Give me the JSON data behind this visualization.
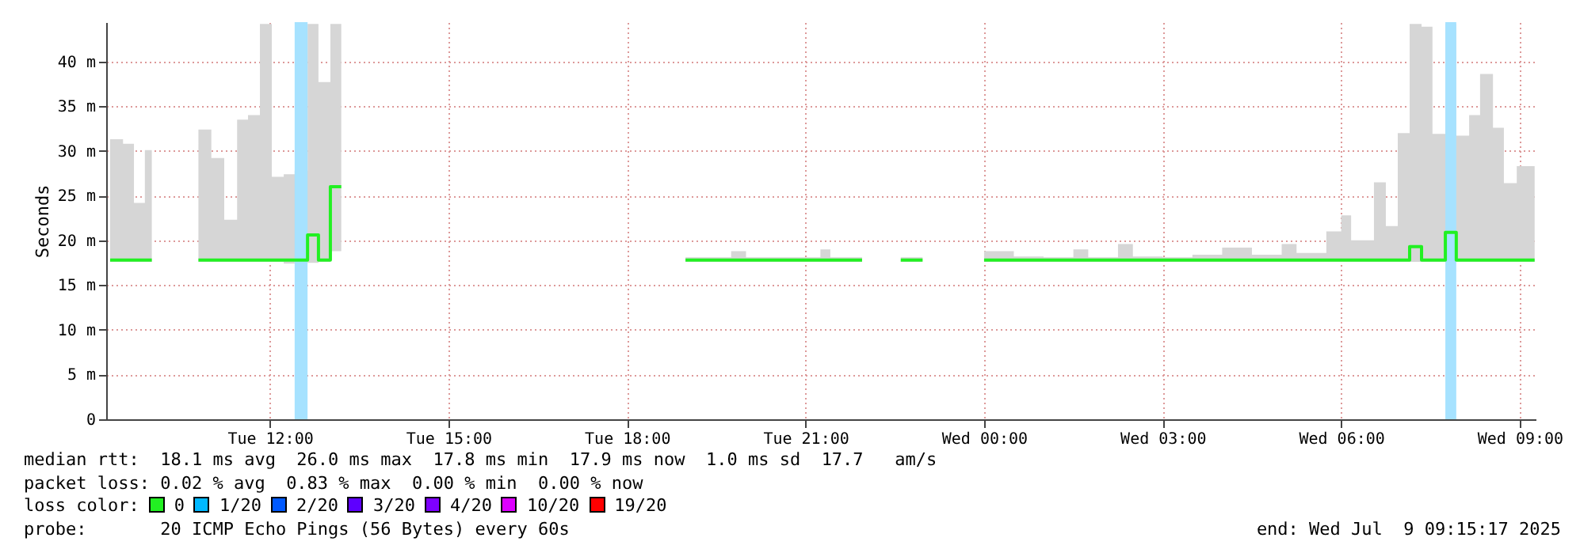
{
  "chart_data": {
    "type": "step",
    "ylabel": "Seconds",
    "x": [
      "2025-07-08T09:19",
      "2025-07-08T09:32",
      "2025-07-08T09:43",
      "2025-07-08T09:54",
      "2025-07-08T10:01",
      "2025-07-08T10:02",
      "2025-07-08T10:48",
      "2025-07-08T11:01",
      "2025-07-08T11:14",
      "2025-07-08T11:27",
      "2025-07-08T11:38",
      "2025-07-08T11:50",
      "2025-07-08T12:02",
      "2025-07-08T12:14",
      "2025-07-08T12:25",
      "2025-07-08T12:38",
      "2025-07-08T12:49",
      "2025-07-08T13:01",
      "2025-07-08T13:12",
      "2025-07-08T13:13",
      "2025-07-08T18:59",
      "2025-07-08T19:30",
      "2025-07-08T19:45",
      "2025-07-08T20:00",
      "2025-07-08T20:30",
      "2025-07-08T21:00",
      "2025-07-08T21:15",
      "2025-07-08T21:25",
      "2025-07-08T21:57",
      "2025-07-08T21:58",
      "2025-07-08T22:36",
      "2025-07-08T22:58",
      "2025-07-08T22:59",
      "2025-07-09T00:00",
      "2025-07-09T00:30",
      "2025-07-09T01:00",
      "2025-07-09T01:30",
      "2025-07-09T01:45",
      "2025-07-09T02:15",
      "2025-07-09T02:30",
      "2025-07-09T03:00",
      "2025-07-09T03:30",
      "2025-07-09T04:00",
      "2025-07-09T04:30",
      "2025-07-09T05:00",
      "2025-07-09T05:15",
      "2025-07-09T05:45",
      "2025-07-09T06:00",
      "2025-07-09T06:10",
      "2025-07-09T06:22",
      "2025-07-09T06:33",
      "2025-07-09T06:45",
      "2025-07-09T06:57",
      "2025-07-09T07:09",
      "2025-07-09T07:21",
      "2025-07-09T07:32",
      "2025-07-09T07:45",
      "2025-07-09T07:56",
      "2025-07-09T08:09",
      "2025-07-09T08:20",
      "2025-07-09T08:33",
      "2025-07-09T08:44",
      "2025-07-09T08:57",
      "2025-07-09T09:08",
      "2025-07-09T09:15"
    ],
    "series": [
      {
        "color": "#22f022",
        "values": [
          17.8,
          17.8,
          17.8,
          17.8,
          17.8,
          null,
          17.8,
          17.8,
          17.8,
          17.8,
          17.8,
          17.8,
          17.8,
          17.8,
          17.8,
          20.6,
          17.8,
          26,
          26,
          null,
          17.8,
          17.8,
          17.8,
          17.8,
          17.8,
          17.8,
          17.8,
          17.8,
          17.8,
          null,
          17.8,
          17.8,
          null,
          17.8,
          17.8,
          17.8,
          17.8,
          17.8,
          17.8,
          17.8,
          17.8,
          17.8,
          17.8,
          17.8,
          17.8,
          17.8,
          17.8,
          17.8,
          17.8,
          17.8,
          17.8,
          17.8,
          17.8,
          19.3,
          17.8,
          17.8,
          20.9,
          17.8,
          17.8,
          17.8,
          17.8,
          17.8,
          17.8,
          17.8,
          17.8
        ],
        "lower": [
          17.6,
          17.6,
          17.6,
          17.6,
          17.6,
          null,
          17.6,
          17.6,
          17.6,
          17.6,
          17.6,
          17.6,
          17.6,
          17.4,
          17.6,
          17.5,
          17.6,
          18.8,
          18.8,
          null,
          17.6,
          17.6,
          17.6,
          17.6,
          17.6,
          17.6,
          17.6,
          17.6,
          17.6,
          null,
          17.6,
          17.6,
          null,
          17.6,
          17.6,
          17.6,
          17.6,
          17.6,
          17.6,
          17.6,
          17.6,
          17.6,
          17.6,
          17.6,
          17.6,
          17.6,
          17.6,
          17.6,
          17.6,
          17.6,
          17.6,
          17.6,
          17.6,
          17.6,
          17.6,
          17.6,
          17.6,
          17.6,
          17.6,
          17.6,
          17.6,
          17.6,
          17.6,
          17.6,
          17.6
        ],
        "upper": [
          31.3,
          30.8,
          24.2,
          30.1,
          30.1,
          null,
          32.4,
          29.2,
          22.3,
          33.5,
          34,
          44.2,
          27.1,
          27.4,
          27.8,
          44.2,
          37.7,
          44.2,
          44.2,
          null,
          18.1,
          18.1,
          18.8,
          18.1,
          18.1,
          18.1,
          19,
          18.1,
          18.1,
          null,
          18.1,
          18.1,
          null,
          18.8,
          18.2,
          18.1,
          19,
          18.1,
          19.6,
          18.2,
          18.1,
          18.4,
          19.2,
          18.4,
          19.6,
          18.6,
          21,
          22.8,
          20,
          20,
          26.5,
          21.6,
          32,
          44.2,
          43.9,
          31.9,
          44.2,
          31.7,
          34,
          38.6,
          32.6,
          26.4,
          28.3,
          28.3,
          28.3
        ]
      }
    ],
    "xlim": [
      "2025-07-08T09:15",
      "2025-07-09T09:16"
    ],
    "xticks": [
      {
        "value": "2025-07-08T12:00",
        "label": "Tue 12:00"
      },
      {
        "value": "2025-07-08T15:00",
        "label": "Tue 15:00"
      },
      {
        "value": "2025-07-08T18:00",
        "label": "Tue 18:00"
      },
      {
        "value": "2025-07-08T21:00",
        "label": "Tue 21:00"
      },
      {
        "value": "2025-07-09T00:00",
        "label": "Wed 00:00"
      },
      {
        "value": "2025-07-09T03:00",
        "label": "Wed 03:00"
      },
      {
        "value": "2025-07-09T06:00",
        "label": "Wed 06:00"
      },
      {
        "value": "2025-07-09T09:00",
        "label": "Wed 09:00"
      }
    ],
    "ylim": [
      0,
      44.4
    ],
    "yticks": [
      0,
      {
        "value": 5,
        "label": "5 m"
      },
      {
        "value": 10,
        "label": "10 m"
      },
      {
        "value": 15,
        "label": "15 m"
      },
      {
        "value": 20,
        "label": "20 m"
      },
      {
        "value": 25,
        "label": "25 m"
      },
      {
        "value": 30,
        "label": "30 m"
      },
      {
        "value": 35,
        "label": "35 m"
      },
      {
        "value": 40,
        "label": "40 m"
      }
    ],
    "bands": [
      {
        "axis": "x",
        "from": "2025-07-08T12:25",
        "to": "2025-07-08T12:38",
        "color": "#a6e2ff"
      },
      {
        "axis": "x",
        "from": "2025-07-09T07:45",
        "to": "2025-07-09T07:56",
        "color": "#a6e2ff"
      }
    ],
    "grid": true,
    "annotations": [
      "median rtt:  18.1 ms avg  26.0 ms max  17.8 ms min  17.9 ms now  1.0 ms sd  17.7   am/s",
      "packet loss: 0.02 % avg  0.83 % max  0.00 % min  0.00 % now",
      "loss color:",
      "0",
      "1/20",
      "2/20",
      "3/20",
      "4/20",
      "10/20",
      "19/20",
      "probe:       20 ICMP Echo Pings (56 Bytes) every 60s",
      "end: Wed Jul  9 09:15:17 2025"
    ]
  }
}
